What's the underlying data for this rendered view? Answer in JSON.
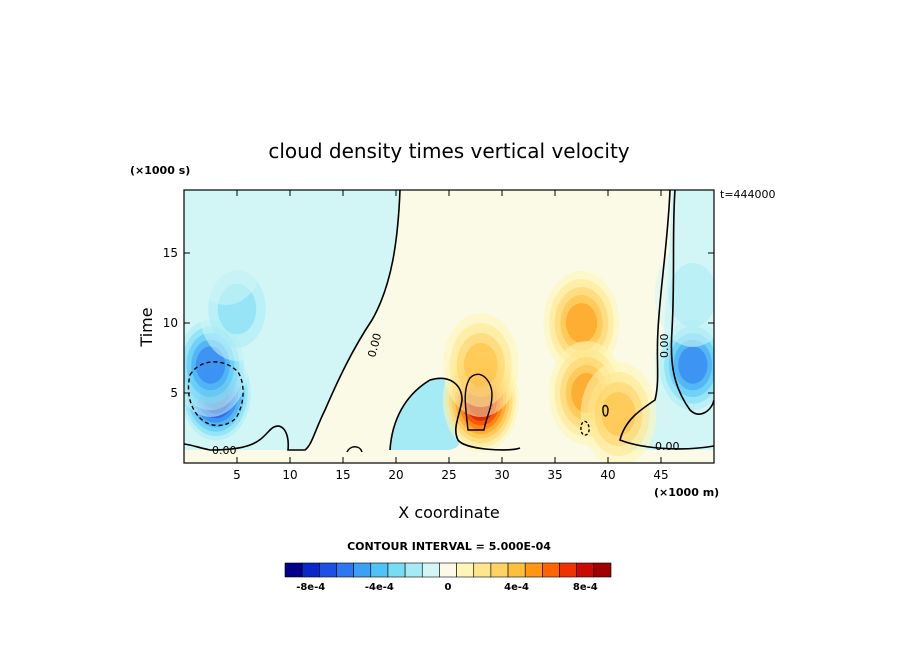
{
  "chart_data": {
    "type": "heatmap",
    "title": "cloud density times vertical velocity",
    "xlabel": "X coordinate",
    "ylabel": "Time",
    "x_unit": "(×1000 m)",
    "y_unit": "(×1000 s)",
    "timestamp": "t=444000",
    "xlim": [
      0,
      50
    ],
    "ylim": [
      0,
      19.5
    ],
    "x_ticks": [
      5,
      10,
      15,
      20,
      25,
      30,
      35,
      40,
      45
    ],
    "y_ticks": [
      5,
      10,
      15
    ],
    "contour_interval_text": "CONTOUR INTERVAL = 5.000E-04",
    "contour_labels": [
      "0.00",
      "0.00",
      "0.00",
      "0.00"
    ],
    "colorbar": {
      "levels": [
        -0.0009,
        -0.0008,
        -0.0007,
        -0.0006,
        -0.0005,
        -0.0004,
        -0.0003,
        -0.0002,
        -0.0001,
        0,
        0.0001,
        0.0002,
        0.0003,
        0.0004,
        0.0005,
        0.0006,
        0.0007,
        0.0008,
        0.0009
      ],
      "colors": [
        "#00008b",
        "#0a28c8",
        "#1e50e6",
        "#2d78f0",
        "#3ca0f5",
        "#50c3f5",
        "#78dcf5",
        "#a5ebf5",
        "#d2f5f5",
        "#fafae6",
        "#fff5b4",
        "#ffe68c",
        "#ffd264",
        "#ffbe3c",
        "#ff9614",
        "#ff6400",
        "#f03200",
        "#c80a00",
        "#a00000"
      ],
      "tick_labels": [
        "-8e-4",
        "-4e-4",
        "0",
        "4e-4",
        "8e-4"
      ],
      "tick_values": [
        -0.0008,
        -0.0004,
        0,
        0.0004,
        0.0008
      ]
    },
    "features": [
      {
        "x": 3,
        "y": 5,
        "value": -0.00085
      },
      {
        "x": 2.5,
        "y": 7,
        "value": -0.0006
      },
      {
        "x": 5,
        "y": 11,
        "value": -0.0003
      },
      {
        "x": 4,
        "y": 15,
        "value": -0.00015
      },
      {
        "x": 28,
        "y": 4.5,
        "value": 0.00085
      },
      {
        "x": 28,
        "y": 7,
        "value": 0.0004
      },
      {
        "x": 37.5,
        "y": 10,
        "value": 0.0005
      },
      {
        "x": 38,
        "y": 5,
        "value": 0.00045
      },
      {
        "x": 41,
        "y": 3.5,
        "value": 0.0004
      },
      {
        "x": 48,
        "y": 7,
        "value": -0.00055
      },
      {
        "x": 48,
        "y": 12,
        "value": -0.0002
      }
    ]
  }
}
